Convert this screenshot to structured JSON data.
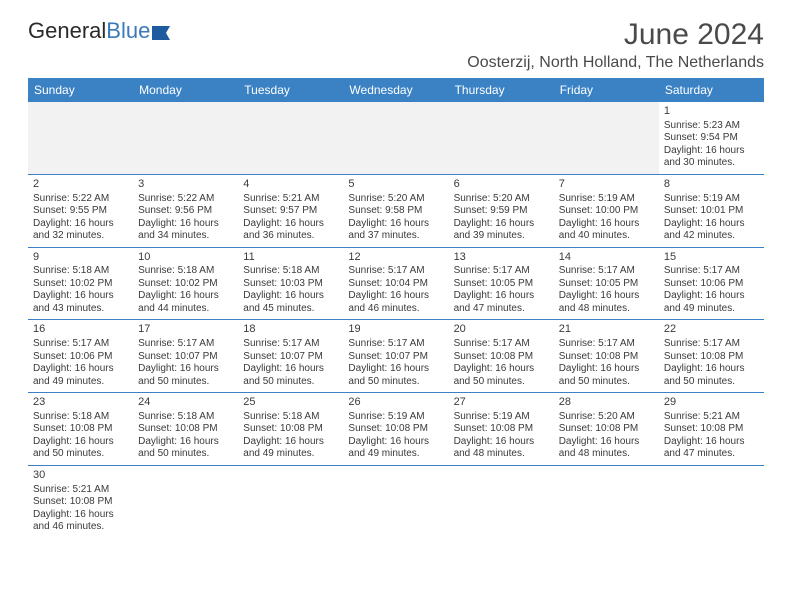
{
  "logo": {
    "part1": "General",
    "part2": "Blue"
  },
  "title": "June 2024",
  "location": "Oosterzij, North Holland, The Netherlands",
  "dayHeaders": [
    "Sunday",
    "Monday",
    "Tuesday",
    "Wednesday",
    "Thursday",
    "Friday",
    "Saturday"
  ],
  "colors": {
    "headerBg": "#3a82c4",
    "headerText": "#ffffff",
    "cellBorder": "#3a82c4",
    "blankBg": "#f2f2f2",
    "titleText": "#4a4a4a",
    "bodyText": "#3a3a3a",
    "logoBlue": "#3a7ab8"
  },
  "layout": {
    "pageWidth": 792,
    "pageHeight": 612,
    "cols": 7,
    "rows": 6,
    "cellFontSize": 10,
    "dayHeadFontSize": 12,
    "titleFontSize": 30,
    "locationFontSize": 16
  },
  "weeks": [
    [
      null,
      null,
      null,
      null,
      null,
      null,
      {
        "n": "1",
        "sr": "Sunrise: 5:23 AM",
        "ss": "Sunset: 9:54 PM",
        "d1": "Daylight: 16 hours",
        "d2": "and 30 minutes."
      }
    ],
    [
      {
        "n": "2",
        "sr": "Sunrise: 5:22 AM",
        "ss": "Sunset: 9:55 PM",
        "d1": "Daylight: 16 hours",
        "d2": "and 32 minutes."
      },
      {
        "n": "3",
        "sr": "Sunrise: 5:22 AM",
        "ss": "Sunset: 9:56 PM",
        "d1": "Daylight: 16 hours",
        "d2": "and 34 minutes."
      },
      {
        "n": "4",
        "sr": "Sunrise: 5:21 AM",
        "ss": "Sunset: 9:57 PM",
        "d1": "Daylight: 16 hours",
        "d2": "and 36 minutes."
      },
      {
        "n": "5",
        "sr": "Sunrise: 5:20 AM",
        "ss": "Sunset: 9:58 PM",
        "d1": "Daylight: 16 hours",
        "d2": "and 37 minutes."
      },
      {
        "n": "6",
        "sr": "Sunrise: 5:20 AM",
        "ss": "Sunset: 9:59 PM",
        "d1": "Daylight: 16 hours",
        "d2": "and 39 minutes."
      },
      {
        "n": "7",
        "sr": "Sunrise: 5:19 AM",
        "ss": "Sunset: 10:00 PM",
        "d1": "Daylight: 16 hours",
        "d2": "and 40 minutes."
      },
      {
        "n": "8",
        "sr": "Sunrise: 5:19 AM",
        "ss": "Sunset: 10:01 PM",
        "d1": "Daylight: 16 hours",
        "d2": "and 42 minutes."
      }
    ],
    [
      {
        "n": "9",
        "sr": "Sunrise: 5:18 AM",
        "ss": "Sunset: 10:02 PM",
        "d1": "Daylight: 16 hours",
        "d2": "and 43 minutes."
      },
      {
        "n": "10",
        "sr": "Sunrise: 5:18 AM",
        "ss": "Sunset: 10:02 PM",
        "d1": "Daylight: 16 hours",
        "d2": "and 44 minutes."
      },
      {
        "n": "11",
        "sr": "Sunrise: 5:18 AM",
        "ss": "Sunset: 10:03 PM",
        "d1": "Daylight: 16 hours",
        "d2": "and 45 minutes."
      },
      {
        "n": "12",
        "sr": "Sunrise: 5:17 AM",
        "ss": "Sunset: 10:04 PM",
        "d1": "Daylight: 16 hours",
        "d2": "and 46 minutes."
      },
      {
        "n": "13",
        "sr": "Sunrise: 5:17 AM",
        "ss": "Sunset: 10:05 PM",
        "d1": "Daylight: 16 hours",
        "d2": "and 47 minutes."
      },
      {
        "n": "14",
        "sr": "Sunrise: 5:17 AM",
        "ss": "Sunset: 10:05 PM",
        "d1": "Daylight: 16 hours",
        "d2": "and 48 minutes."
      },
      {
        "n": "15",
        "sr": "Sunrise: 5:17 AM",
        "ss": "Sunset: 10:06 PM",
        "d1": "Daylight: 16 hours",
        "d2": "and 49 minutes."
      }
    ],
    [
      {
        "n": "16",
        "sr": "Sunrise: 5:17 AM",
        "ss": "Sunset: 10:06 PM",
        "d1": "Daylight: 16 hours",
        "d2": "and 49 minutes."
      },
      {
        "n": "17",
        "sr": "Sunrise: 5:17 AM",
        "ss": "Sunset: 10:07 PM",
        "d1": "Daylight: 16 hours",
        "d2": "and 50 minutes."
      },
      {
        "n": "18",
        "sr": "Sunrise: 5:17 AM",
        "ss": "Sunset: 10:07 PM",
        "d1": "Daylight: 16 hours",
        "d2": "and 50 minutes."
      },
      {
        "n": "19",
        "sr": "Sunrise: 5:17 AM",
        "ss": "Sunset: 10:07 PM",
        "d1": "Daylight: 16 hours",
        "d2": "and 50 minutes."
      },
      {
        "n": "20",
        "sr": "Sunrise: 5:17 AM",
        "ss": "Sunset: 10:08 PM",
        "d1": "Daylight: 16 hours",
        "d2": "and 50 minutes."
      },
      {
        "n": "21",
        "sr": "Sunrise: 5:17 AM",
        "ss": "Sunset: 10:08 PM",
        "d1": "Daylight: 16 hours",
        "d2": "and 50 minutes."
      },
      {
        "n": "22",
        "sr": "Sunrise: 5:17 AM",
        "ss": "Sunset: 10:08 PM",
        "d1": "Daylight: 16 hours",
        "d2": "and 50 minutes."
      }
    ],
    [
      {
        "n": "23",
        "sr": "Sunrise: 5:18 AM",
        "ss": "Sunset: 10:08 PM",
        "d1": "Daylight: 16 hours",
        "d2": "and 50 minutes."
      },
      {
        "n": "24",
        "sr": "Sunrise: 5:18 AM",
        "ss": "Sunset: 10:08 PM",
        "d1": "Daylight: 16 hours",
        "d2": "and 50 minutes."
      },
      {
        "n": "25",
        "sr": "Sunrise: 5:18 AM",
        "ss": "Sunset: 10:08 PM",
        "d1": "Daylight: 16 hours",
        "d2": "and 49 minutes."
      },
      {
        "n": "26",
        "sr": "Sunrise: 5:19 AM",
        "ss": "Sunset: 10:08 PM",
        "d1": "Daylight: 16 hours",
        "d2": "and 49 minutes."
      },
      {
        "n": "27",
        "sr": "Sunrise: 5:19 AM",
        "ss": "Sunset: 10:08 PM",
        "d1": "Daylight: 16 hours",
        "d2": "and 48 minutes."
      },
      {
        "n": "28",
        "sr": "Sunrise: 5:20 AM",
        "ss": "Sunset: 10:08 PM",
        "d1": "Daylight: 16 hours",
        "d2": "and 48 minutes."
      },
      {
        "n": "29",
        "sr": "Sunrise: 5:21 AM",
        "ss": "Sunset: 10:08 PM",
        "d1": "Daylight: 16 hours",
        "d2": "and 47 minutes."
      }
    ],
    [
      {
        "n": "30",
        "sr": "Sunrise: 5:21 AM",
        "ss": "Sunset: 10:08 PM",
        "d1": "Daylight: 16 hours",
        "d2": "and 46 minutes."
      },
      null,
      null,
      null,
      null,
      null,
      null
    ]
  ]
}
